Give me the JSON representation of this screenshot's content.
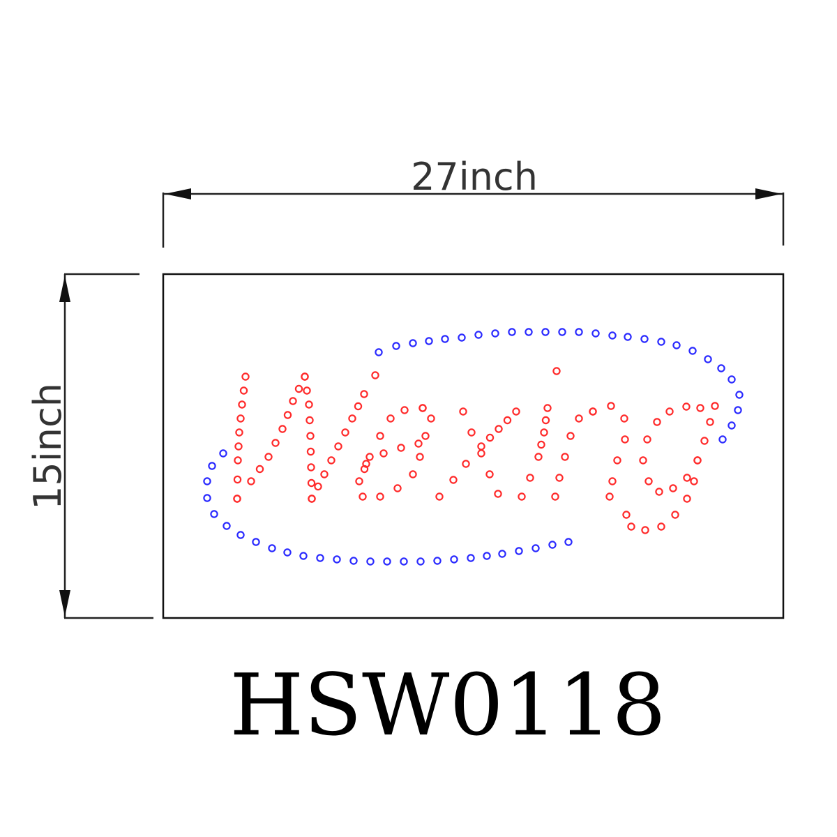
{
  "dimensions": {
    "width_label": "27inch",
    "height_label": "15inch"
  },
  "sign": {
    "text": "Waxing",
    "model": "HSW0118",
    "led_colors": {
      "lettering": "#ff2a2a",
      "border_swoosh": "#2a2aff"
    }
  }
}
